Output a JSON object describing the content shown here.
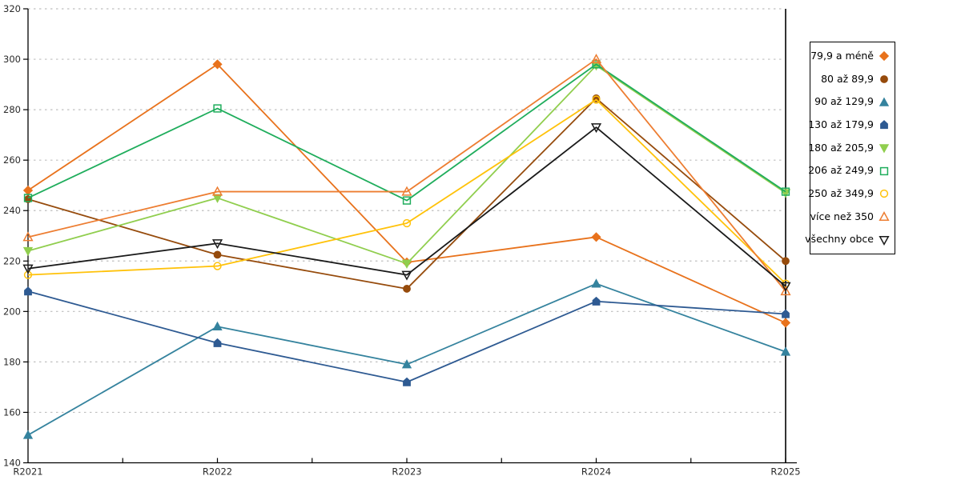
{
  "chart_data": {
    "type": "line",
    "title": "",
    "xlabel": "",
    "ylabel": "",
    "categories": [
      "R2021",
      "R2022",
      "R2023",
      "R2024",
      "R2025"
    ],
    "ylim": [
      140,
      320
    ],
    "ytick_step": 20,
    "ytick_labels": [
      "140",
      "160",
      "180",
      "200",
      "220",
      "240",
      "260",
      "280",
      "300",
      "320"
    ],
    "grid": "horizontal-dashed",
    "legend_position": "top-right",
    "series": [
      {
        "name": "79,9 a méně",
        "color": "#E8721C",
        "marker": "diamond-filled",
        "values": [
          248,
          298,
          219.5,
          229.5,
          195.5
        ]
      },
      {
        "name": "80 až 89,9",
        "color": "#964B0C",
        "marker": "circle-filled",
        "values": [
          244.5,
          222.5,
          209,
          284.5,
          220
        ]
      },
      {
        "name": "90 až 129,9",
        "color": "#35839E",
        "marker": "triangle-up-filled",
        "values": [
          151,
          194,
          179,
          211,
          184
        ]
      },
      {
        "name": "130 až 179,9",
        "color": "#2E5A92",
        "marker": "pentagon-filled",
        "values": [
          208,
          187.5,
          172,
          204,
          199
        ]
      },
      {
        "name": "180 až 205,9",
        "color": "#90CE4E",
        "marker": "triangle-down-filled",
        "values": [
          224,
          245,
          219,
          297.5,
          247
        ]
      },
      {
        "name": "206 až 249,9",
        "color": "#1FAD5C",
        "marker": "square-open",
        "values": [
          245,
          280.5,
          244,
          298,
          247.5
        ]
      },
      {
        "name": "250 až 349,9",
        "color": "#FFC20A",
        "marker": "circle-open",
        "values": [
          214.5,
          218,
          235,
          284,
          211
        ]
      },
      {
        "name": "více než 350",
        "color": "#ED7D31",
        "marker": "triangle-up-open",
        "values": [
          229.5,
          247.5,
          247.5,
          300,
          208
        ]
      },
      {
        "name": "všechny obce",
        "color": "#1A1A1A",
        "marker": "triangle-down-open",
        "values": [
          217,
          227,
          214.5,
          273,
          210
        ]
      }
    ]
  },
  "colors": {
    "background": "#ffffff",
    "gridline": "#bfbfbf",
    "axis": "#000000",
    "tick_text": "#2b2b2b"
  }
}
